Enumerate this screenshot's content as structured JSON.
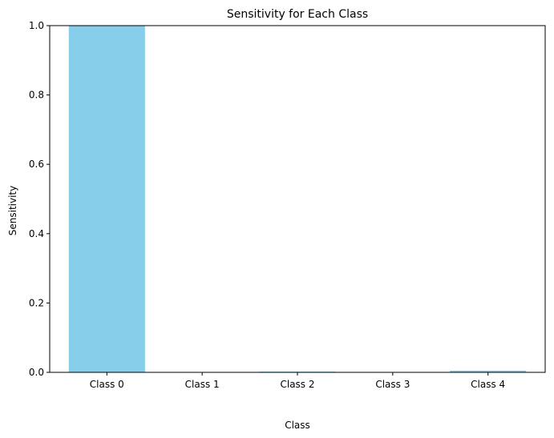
{
  "colors": {
    "bar": "#87ceeb",
    "axes": "#000000",
    "background": "#ffffff"
  },
  "chart_data": {
    "type": "bar",
    "title": "Sensitivity for Each Class",
    "xlabel": "Class",
    "ylabel": "Sensitivity",
    "categories": [
      "Class 0",
      "Class 1",
      "Class 2",
      "Class 3",
      "Class 4"
    ],
    "values": [
      1.0,
      0.0,
      0.002,
      0.0,
      0.005
    ],
    "ylim": [
      0,
      1.0
    ],
    "yticks": [
      0.0,
      0.2,
      0.4,
      0.6,
      0.8,
      1.0
    ],
    "ytick_labels": [
      "0.0",
      "0.2",
      "0.4",
      "0.6",
      "0.8",
      "1.0"
    ],
    "grid": false,
    "legend": "none"
  }
}
